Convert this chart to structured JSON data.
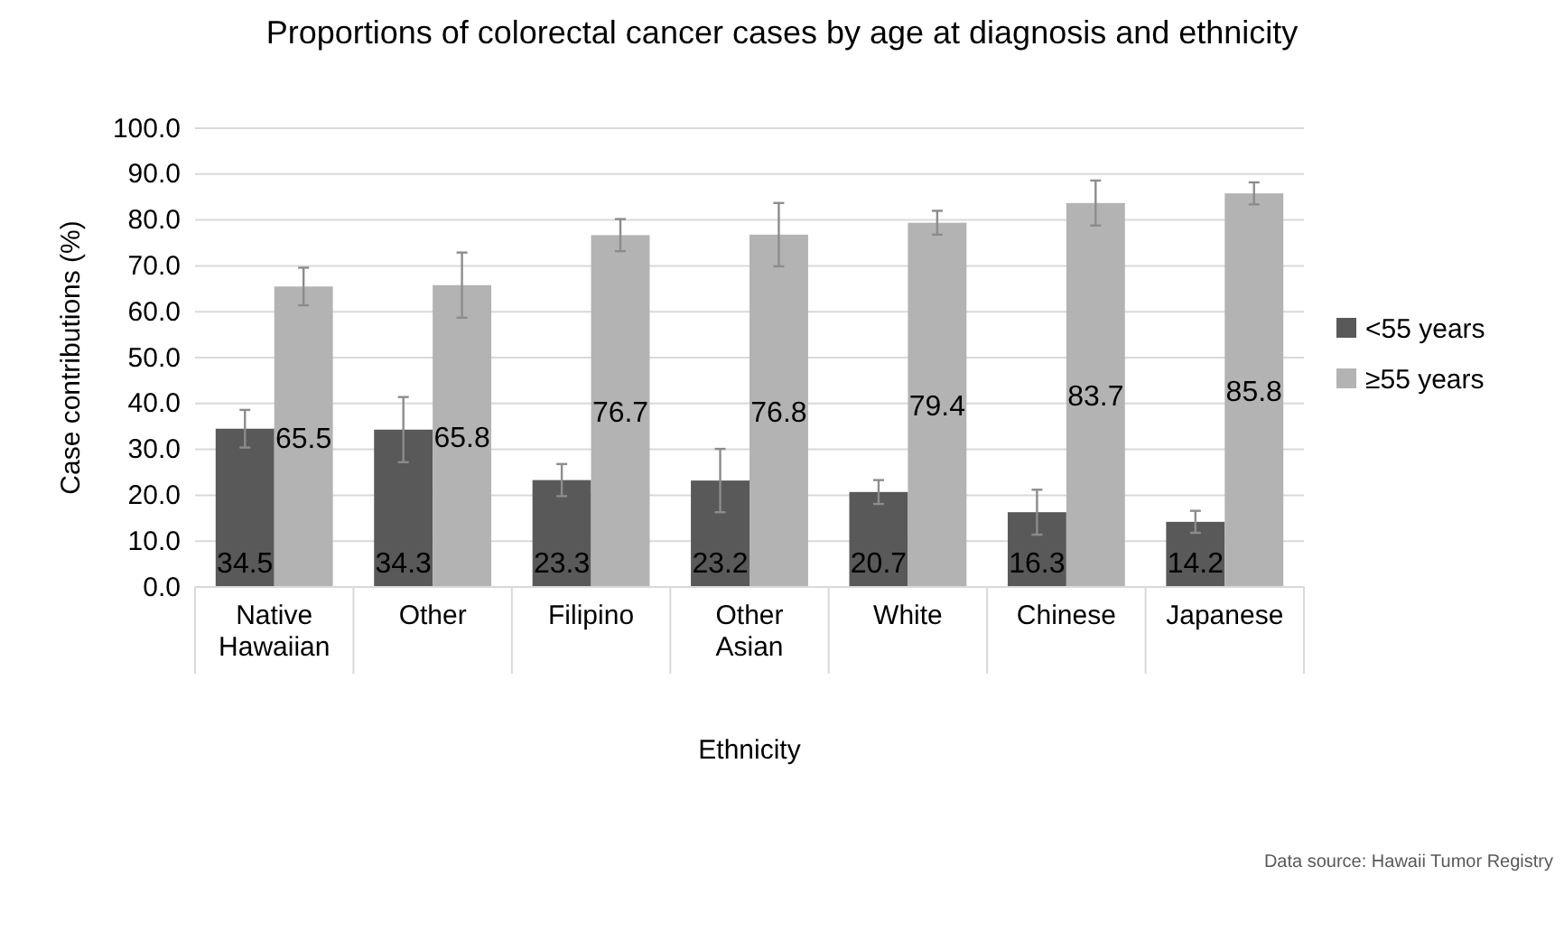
{
  "chart_data": {
    "type": "bar",
    "title": "Proportions of colorectal cancer cases by age at diagnosis and ethnicity",
    "xlabel": "Ethnicity",
    "ylabel": "Case contributions (%)",
    "categories": [
      "Native Hawaiian",
      "Other",
      "Filipino",
      "Other Asian",
      "White",
      "Chinese",
      "Japanese"
    ],
    "series": [
      {
        "name": "<55 years",
        "color": "#595959",
        "values": [
          34.5,
          34.3,
          23.3,
          23.2,
          20.7,
          16.3,
          14.2
        ],
        "errors": [
          4.1,
          7.1,
          3.5,
          6.9,
          2.6,
          4.9,
          2.4
        ]
      },
      {
        "name": "≥55 years",
        "color": "#b3b3b3",
        "values": [
          65.5,
          65.8,
          76.7,
          76.8,
          79.4,
          83.7,
          85.8
        ],
        "errors": [
          4.1,
          7.1,
          3.5,
          6.9,
          2.6,
          4.9,
          2.4
        ]
      }
    ],
    "ylim": [
      0,
      100
    ],
    "yticks": [
      {
        "value": 0,
        "label": "0.0"
      },
      {
        "value": 10,
        "label": "10.0"
      },
      {
        "value": 20,
        "label": "20.0"
      },
      {
        "value": 30,
        "label": "30.0"
      },
      {
        "value": 40,
        "label": "40.0"
      },
      {
        "value": 50,
        "label": "50.0"
      },
      {
        "value": 60,
        "label": "60.0"
      },
      {
        "value": 70,
        "label": "70.0"
      },
      {
        "value": 80,
        "label": "80.0"
      },
      {
        "value": 90,
        "label": "90.0"
      },
      {
        "value": 100,
        "label": "100.0"
      }
    ],
    "grid": "y",
    "legend": "right",
    "data_labels": true,
    "annotations": [
      "Data source: Hawaii Tumor Registry"
    ]
  }
}
